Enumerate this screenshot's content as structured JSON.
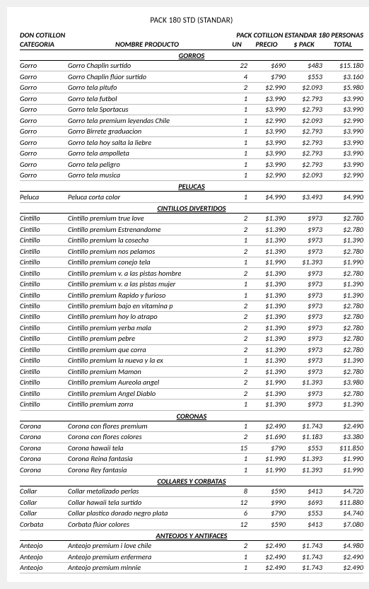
{
  "title": "PACK 180 STD (STANDAR)",
  "brand": "DON COTILLON",
  "top_right": "PACK COTILLON ESTANDAR 180 PERSONAS",
  "headers": {
    "categoria": "CATEGORIA",
    "nombre": "NOMBRE PRODUCTO",
    "un": "UN",
    "precio": "PRECIO",
    "pack": "$ PACK",
    "total": "TOTAL"
  },
  "sections": [
    {
      "name": "GORROS",
      "rows": [
        {
          "cat": "Gorro",
          "name": "Gorro Chaplin surtido",
          "un": "22",
          "precio": "$690",
          "pack": "$483",
          "total": "$15.180"
        },
        {
          "cat": "Gorro",
          "name": "Gorro Chaplin flúor surtido",
          "un": "4",
          "precio": "$790",
          "pack": "$553",
          "total": "$3.160"
        },
        {
          "cat": "Gorro",
          "name": "Gorro tela pitufo",
          "un": "2",
          "precio": "$2.990",
          "pack": "$2.093",
          "total": "$5.980"
        },
        {
          "cat": "Gorro",
          "name": "Gorro tela futbol",
          "un": "1",
          "precio": "$3.990",
          "pack": "$2.793",
          "total": "$3.990"
        },
        {
          "cat": "Gorro",
          "name": "Gorro tela Sportacus",
          "un": "1",
          "precio": "$3.990",
          "pack": "$2.793",
          "total": "$3.990"
        },
        {
          "cat": "Gorro",
          "name": "Gorro tela premium leyendas Chile",
          "un": "1",
          "precio": "$2.990",
          "pack": "$2.093",
          "total": "$2.990"
        },
        {
          "cat": "Gorro",
          "name": "Gorro Birrete graduacion",
          "un": "1",
          "precio": "$3.990",
          "pack": "$2.793",
          "total": "$3.990"
        },
        {
          "cat": "Gorro",
          "name": "Gorro tela hoy salta la liebre",
          "un": "1",
          "precio": "$3.990",
          "pack": "$2.793",
          "total": "$3.990"
        },
        {
          "cat": "Gorro",
          "name": "Gorro tela ampolleta",
          "un": "1",
          "precio": "$3.990",
          "pack": "$2.793",
          "total": "$3.990"
        },
        {
          "cat": "Gorro",
          "name": "Gorro tela peligro",
          "un": "1",
          "precio": "$3.990",
          "pack": "$2.793",
          "total": "$3.990"
        },
        {
          "cat": "Gorro",
          "name": "Gorro tela musica",
          "un": "1",
          "precio": "$2.990",
          "pack": "$2.093",
          "total": "$2.990"
        }
      ]
    },
    {
      "name": "PELUCAS",
      "rows": [
        {
          "cat": "Peluca",
          "name": "Peluca corta color",
          "un": "1",
          "precio": "$4.990",
          "pack": "$3.493",
          "total": "$4.990"
        }
      ]
    },
    {
      "name": "CINTILLOS DIVERTIDOS",
      "rows": [
        {
          "cat": "Cintillo",
          "name": "Cintillo premium true love",
          "un": "2",
          "precio": "$1.390",
          "pack": "$973",
          "total": "$2.780"
        },
        {
          "cat": "Cintillo",
          "name": "Cintillo premium Estrenandome",
          "un": "2",
          "precio": "$1.390",
          "pack": "$973",
          "total": "$2.780"
        },
        {
          "cat": "Cintillo",
          "name": "Cintillo premium la cosecha",
          "un": "1",
          "precio": "$1.390",
          "pack": "$973",
          "total": "$1.390"
        },
        {
          "cat": "Cintillo",
          "name": "Cintillo premium nos pelamos",
          "un": "2",
          "precio": "$1.390",
          "pack": "$973",
          "total": "$2.780"
        },
        {
          "cat": "Cintillo",
          "name": "Cintillo premium conejo tela",
          "un": "1",
          "precio": "$1.990",
          "pack": "$1.393",
          "total": "$1.990"
        },
        {
          "cat": "Cintillo",
          "name": "Cintillo premium v. a las pistas hombre",
          "un": "2",
          "precio": "$1.390",
          "pack": "$973",
          "total": "$2.780"
        },
        {
          "cat": "Cintillo",
          "name": "Cintillo premium v. a las pistas mujer",
          "un": "1",
          "precio": "$1.390",
          "pack": "$973",
          "total": "$1.390"
        },
        {
          "cat": "Cintillo",
          "name": "Cintillo premium Rapido y furioso",
          "un": "1",
          "precio": "$1.390",
          "pack": "$973",
          "total": "$1.390"
        },
        {
          "cat": "Cintillo",
          "name": "Cintillo premium bajo en vitamina p",
          "un": "2",
          "precio": "$1.390",
          "pack": "$973",
          "total": "$2.780"
        },
        {
          "cat": "Cintillo",
          "name": "Cintillo premium hoy lo atrapo",
          "un": "2",
          "precio": "$1.390",
          "pack": "$973",
          "total": "$2.780"
        },
        {
          "cat": "Cintillo",
          "name": "Cintillo premium yerba mala",
          "un": "2",
          "precio": "$1.390",
          "pack": "$973",
          "total": "$2.780"
        },
        {
          "cat": "Cintillo",
          "name": "Cintillo premium pebre",
          "un": "2",
          "precio": "$1.390",
          "pack": "$973",
          "total": "$2.780"
        },
        {
          "cat": "Cintillo",
          "name": "Cintillo premium que corra",
          "un": "2",
          "precio": "$1.390",
          "pack": "$973",
          "total": "$2.780"
        },
        {
          "cat": "Cintillo",
          "name": "Cintillo premium la nueva y la ex",
          "un": "1",
          "precio": "$1.390",
          "pack": "$973",
          "total": "$1.390"
        },
        {
          "cat": "Cintillo",
          "name": "Cintillo premium Mamon",
          "un": "2",
          "precio": "$1.390",
          "pack": "$973",
          "total": "$2.780"
        },
        {
          "cat": "Cintillo",
          "name": "Cintillo premium Aureola angel",
          "un": "2",
          "precio": "$1.990",
          "pack": "$1.393",
          "total": "$3.980"
        },
        {
          "cat": "Cintillo",
          "name": "Cintillo premium Angel Diablo",
          "un": "2",
          "precio": "$1.390",
          "pack": "$973",
          "total": "$2.780"
        },
        {
          "cat": "Cintillo",
          "name": "Cintillo premium zorra",
          "un": "1",
          "precio": "$1.390",
          "pack": "$973",
          "total": "$1.390"
        }
      ]
    },
    {
      "name": "CORONAS",
      "rows": [
        {
          "cat": "Corona",
          "name": "Corona con flores premium",
          "un": "1",
          "precio": "$2.490",
          "pack": "$1.743",
          "total": "$2.490"
        },
        {
          "cat": "Corona",
          "name": "Corona con flores colores",
          "un": "2",
          "precio": "$1.690",
          "pack": "$1.183",
          "total": "$3.380"
        },
        {
          "cat": "Corona",
          "name": "Corona hawaii tela",
          "un": "15",
          "precio": "$790",
          "pack": "$553",
          "total": "$11.850"
        },
        {
          "cat": "Corona",
          "name": "Corona Reina fantasia",
          "un": "1",
          "precio": "$1.990",
          "pack": "$1.393",
          "total": "$1.990"
        },
        {
          "cat": "Corona",
          "name": "Corona Rey fantasia",
          "un": "1",
          "precio": "$1.990",
          "pack": "$1.393",
          "total": "$1.990"
        }
      ]
    },
    {
      "name": "COLLARES Y CORBATAS",
      "rows": [
        {
          "cat": "Collar",
          "name": "Collar metalizado perlas",
          "un": "8",
          "precio": "$590",
          "pack": "$413",
          "total": "$4.720"
        },
        {
          "cat": "Collar",
          "name": "Collar hawaii tela surtido",
          "un": "12",
          "precio": "$990",
          "pack": "$693",
          "total": "$11.880"
        },
        {
          "cat": "Collar",
          "name": "Collar plastico dorado negro plata",
          "un": "6",
          "precio": "$790",
          "pack": "$553",
          "total": "$4.740"
        },
        {
          "cat": "Corbata",
          "name": "Corbata flúor colores",
          "un": "12",
          "precio": "$590",
          "pack": "$413",
          "total": "$7.080"
        }
      ]
    },
    {
      "name": "ANTEOJOS Y ANTIFACES",
      "rows": [
        {
          "cat": "Anteojo",
          "name": "Anteojo premium i love chile",
          "un": "2",
          "precio": "$2.490",
          "pack": "$1.743",
          "total": "$4.980"
        },
        {
          "cat": "Anteojo",
          "name": "Anteojo premium enfermera",
          "un": "1",
          "precio": "$2.490",
          "pack": "$1.743",
          "total": "$2.490"
        },
        {
          "cat": "Anteojo",
          "name": "Anteojo premium minnie",
          "un": "1",
          "precio": "$2.490",
          "pack": "$1.743",
          "total": "$2.490"
        }
      ]
    }
  ]
}
